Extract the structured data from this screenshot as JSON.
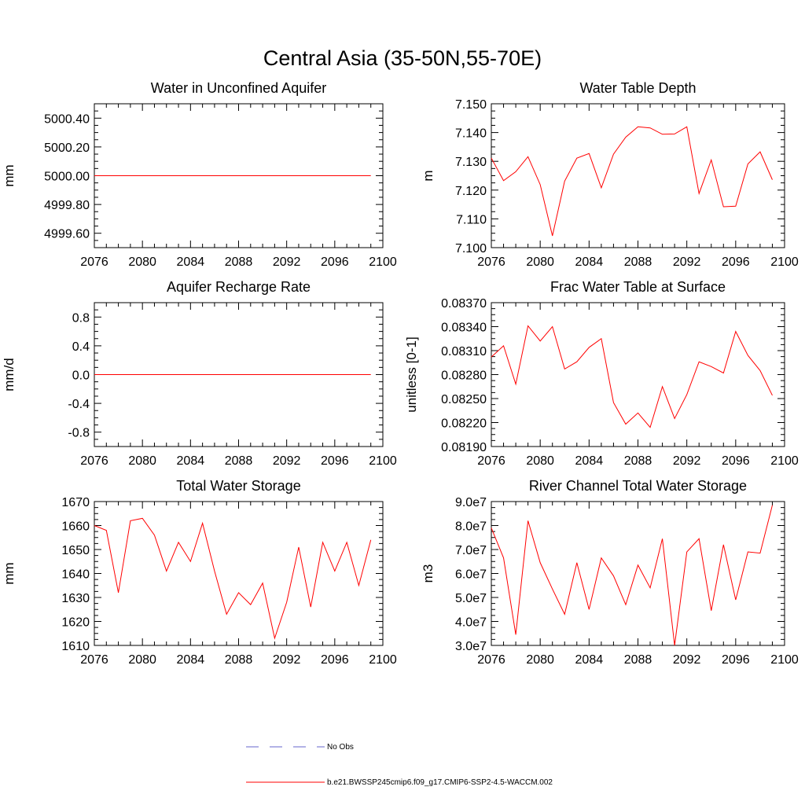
{
  "figure": {
    "title": "Central Asia (35-50N,55-70E)"
  },
  "legend": {
    "entries": [
      {
        "label": "No Obs",
        "color": "#6666cc",
        "style": "dashed"
      },
      {
        "label": "b.e21.BWSSP245cmip6.f09_g17.CMIP6-SSP2-4.5-WACCM.002",
        "color": "#ff0000",
        "style": "solid"
      }
    ]
  },
  "chart_data": [
    {
      "type": "line",
      "title": "Water in Unconfined Aquifer",
      "xlabel": "",
      "ylabel": "mm",
      "xlim": [
        2076,
        2100
      ],
      "ylim": [
        4999.5,
        5000.5
      ],
      "x_ticks": [
        2076,
        2080,
        2084,
        2088,
        2092,
        2096,
        2100
      ],
      "x_tick_labels": [
        "2076",
        "2080",
        "2084",
        "2088",
        "2092",
        "2096",
        "2100"
      ],
      "y_ticks": [
        4999.6,
        4999.8,
        5000.0,
        5000.2,
        5000.4
      ],
      "y_tick_labels": [
        "4999.60",
        "4999.80",
        "5000.00",
        "5000.20",
        "5000.40"
      ],
      "series": [
        {
          "name": "b.e21.BWSSP245cmip6.f09_g17.CMIP6-SSP2-4.5-WACCM.002",
          "color": "#ff0000",
          "x": [
            2076,
            2077,
            2078,
            2079,
            2080,
            2081,
            2082,
            2083,
            2084,
            2085,
            2086,
            2087,
            2088,
            2089,
            2090,
            2091,
            2092,
            2093,
            2094,
            2095,
            2096,
            2097,
            2098,
            2099
          ],
          "values": [
            5000,
            5000,
            5000,
            5000,
            5000,
            5000,
            5000,
            5000,
            5000,
            5000,
            5000,
            5000,
            5000,
            5000,
            5000,
            5000,
            5000,
            5000,
            5000,
            5000,
            5000,
            5000,
            5000,
            5000
          ]
        }
      ]
    },
    {
      "type": "line",
      "title": "Water Table Depth",
      "xlabel": "",
      "ylabel": "m",
      "xlim": [
        2076,
        2100
      ],
      "ylim": [
        7.1,
        7.15
      ],
      "x_ticks": [
        2076,
        2080,
        2084,
        2088,
        2092,
        2096,
        2100
      ],
      "x_tick_labels": [
        "2076",
        "2080",
        "2084",
        "2088",
        "2092",
        "2096",
        "2100"
      ],
      "y_ticks": [
        7.1,
        7.11,
        7.12,
        7.13,
        7.14,
        7.15
      ],
      "y_tick_labels": [
        "7.100",
        "7.110",
        "7.120",
        "7.130",
        "7.140",
        "7.150"
      ],
      "series": [
        {
          "name": "b.e21.BWSSP245cmip6.f09_g17.CMIP6-SSP2-4.5-WACCM.002",
          "color": "#ff0000",
          "x": [
            2076,
            2077,
            2078,
            2079,
            2080,
            2081,
            2082,
            2083,
            2084,
            2085,
            2086,
            2087,
            2088,
            2089,
            2090,
            2091,
            2092,
            2093,
            2094,
            2095,
            2096,
            2097,
            2098,
            2099
          ],
          "values": [
            7.1311,
            7.1233,
            7.1264,
            7.1316,
            7.1219,
            7.1041,
            7.1231,
            7.1311,
            7.1327,
            7.1208,
            7.1325,
            7.1384,
            7.142,
            7.1416,
            7.1394,
            7.1395,
            7.142,
            7.1188,
            7.1305,
            7.1142,
            7.1144,
            7.1291,
            7.1333,
            7.1236
          ]
        }
      ]
    },
    {
      "type": "line",
      "title": "Aquifer Recharge Rate",
      "xlabel": "",
      "ylabel": "mm/d",
      "xlim": [
        2076,
        2100
      ],
      "ylim": [
        -1,
        1
      ],
      "x_ticks": [
        2076,
        2080,
        2084,
        2088,
        2092,
        2096,
        2100
      ],
      "x_tick_labels": [
        "2076",
        "2080",
        "2084",
        "2088",
        "2092",
        "2096",
        "2100"
      ],
      "y_ticks": [
        -0.8,
        -0.4,
        0.0,
        0.4,
        0.8
      ],
      "y_tick_labels": [
        "-0.8",
        "-0.4",
        "0.0",
        "0.4",
        "0.8"
      ],
      "series": [
        {
          "name": "b.e21.BWSSP245cmip6.f09_g17.CMIP6-SSP2-4.5-WACCM.002",
          "color": "#ff0000",
          "x": [
            2076,
            2077,
            2078,
            2079,
            2080,
            2081,
            2082,
            2083,
            2084,
            2085,
            2086,
            2087,
            2088,
            2089,
            2090,
            2091,
            2092,
            2093,
            2094,
            2095,
            2096,
            2097,
            2098,
            2099
          ],
          "values": [
            0,
            0,
            0,
            0,
            0,
            0,
            0,
            0,
            0,
            0,
            0,
            0,
            0,
            0,
            0,
            0,
            0,
            0,
            0,
            0,
            0,
            0,
            0,
            0
          ]
        }
      ]
    },
    {
      "type": "line",
      "title": "Frac Water Table at Surface",
      "xlabel": "",
      "ylabel": "unitless [0-1]",
      "xlim": [
        2076,
        2100
      ],
      "ylim": [
        0.0819,
        0.0837
      ],
      "x_ticks": [
        2076,
        2080,
        2084,
        2088,
        2092,
        2096,
        2100
      ],
      "x_tick_labels": [
        "2076",
        "2080",
        "2084",
        "2088",
        "2092",
        "2096",
        "2100"
      ],
      "y_ticks": [
        0.0819,
        0.0822,
        0.0825,
        0.0828,
        0.0831,
        0.0834,
        0.0837
      ],
      "y_tick_labels": [
        "0.08190",
        "0.08220",
        "0.08250",
        "0.08280",
        "0.08310",
        "0.08340",
        "0.08370"
      ],
      "series": [
        {
          "name": "b.e21.BWSSP245cmip6.f09_g17.CMIP6-SSP2-4.5-WACCM.002",
          "color": "#ff0000",
          "x": [
            2076,
            2077,
            2078,
            2079,
            2080,
            2081,
            2082,
            2083,
            2084,
            2085,
            2086,
            2087,
            2088,
            2089,
            2090,
            2091,
            2092,
            2093,
            2094,
            2095,
            2096,
            2097,
            2098,
            2099
          ],
          "values": [
            0.08302,
            0.08316,
            0.08268,
            0.08341,
            0.08322,
            0.0834,
            0.08287,
            0.08296,
            0.08314,
            0.08325,
            0.08245,
            0.08218,
            0.08232,
            0.08214,
            0.08265,
            0.08225,
            0.08255,
            0.08296,
            0.0829,
            0.08282,
            0.08334,
            0.08304,
            0.08285,
            0.08254
          ]
        }
      ]
    },
    {
      "type": "line",
      "title": "Total Water Storage",
      "xlabel": "",
      "ylabel": "mm",
      "xlim": [
        2076,
        2100
      ],
      "ylim": [
        1610,
        1670
      ],
      "x_ticks": [
        2076,
        2080,
        2084,
        2088,
        2092,
        2096,
        2100
      ],
      "x_tick_labels": [
        "2076",
        "2080",
        "2084",
        "2088",
        "2092",
        "2096",
        "2100"
      ],
      "y_ticks": [
        1610,
        1620,
        1630,
        1640,
        1650,
        1660,
        1670
      ],
      "y_tick_labels": [
        "1610",
        "1620",
        "1630",
        "1640",
        "1650",
        "1660",
        "1670"
      ],
      "series": [
        {
          "name": "b.e21.BWSSP245cmip6.f09_g17.CMIP6-SSP2-4.5-WACCM.002",
          "color": "#ff0000",
          "x": [
            2076,
            2077,
            2078,
            2079,
            2080,
            2081,
            2082,
            2083,
            2084,
            2085,
            2086,
            2087,
            2088,
            2089,
            2090,
            2091,
            2092,
            2093,
            2094,
            2095,
            2096,
            2097,
            2098,
            2099
          ],
          "values": [
            1660,
            1658,
            1632,
            1662,
            1663,
            1656,
            1641,
            1653,
            1645,
            1661,
            1641,
            1623,
            1632,
            1627,
            1636,
            1613,
            1628,
            1651,
            1626,
            1653,
            1641,
            1653,
            1635,
            1654
          ]
        }
      ]
    },
    {
      "type": "line",
      "title": "River Channel Total Water Storage",
      "xlabel": "",
      "ylabel": "m3",
      "xlim": [
        2076,
        2100
      ],
      "ylim": [
        30000000,
        90000000
      ],
      "x_ticks": [
        2076,
        2080,
        2084,
        2088,
        2092,
        2096,
        2100
      ],
      "x_tick_labels": [
        "2076",
        "2080",
        "2084",
        "2088",
        "2092",
        "2096",
        "2100"
      ],
      "y_ticks": [
        30000000,
        40000000,
        50000000,
        60000000,
        70000000,
        80000000,
        90000000
      ],
      "y_tick_labels": [
        "3.0e7",
        "4.0e7",
        "5.0e7",
        "6.0e7",
        "7.0e7",
        "8.0e7",
        "9.0e7"
      ],
      "series": [
        {
          "name": "b.e21.BWSSP245cmip6.f09_g17.CMIP6-SSP2-4.5-WACCM.002",
          "color": "#ff0000",
          "x": [
            2076,
            2077,
            2078,
            2079,
            2080,
            2081,
            2082,
            2083,
            2084,
            2085,
            2086,
            2087,
            2088,
            2089,
            2090,
            2091,
            2092,
            2093,
            2094,
            2095,
            2096,
            2097,
            2098,
            2099
          ],
          "values": [
            79000000,
            66500000,
            34500000,
            82000000,
            64500000,
            53500000,
            43000000,
            64500000,
            45000000,
            66500000,
            59000000,
            47000000,
            63500000,
            54000000,
            74500000,
            30000000,
            69000000,
            74500000,
            44500000,
            72000000,
            49000000,
            69000000,
            68500000,
            88500000
          ]
        }
      ]
    }
  ]
}
